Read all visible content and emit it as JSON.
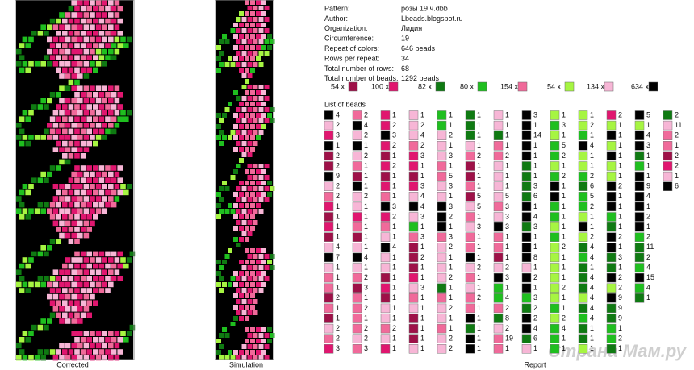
{
  "info": [
    [
      "Pattern:",
      "розы 19 ч.dbb"
    ],
    [
      "Author:",
      "Lbeads.blogspot.ru"
    ],
    [
      "Organization:",
      "Лидия"
    ],
    [
      "Circumference:",
      "19"
    ],
    [
      "Repeat of colors:",
      "646 beads"
    ],
    [
      "Rows per repeat:",
      "34"
    ],
    [
      "Total number of rows:",
      "68"
    ],
    [
      "Total number of beads:",
      "1292 beads"
    ]
  ],
  "colors": [
    "#9e1148",
    "#e0166f",
    "#0f7a12",
    "#1fbf1f",
    "#f06a9a",
    "#a6f542",
    "#f7b6d6",
    "#000000"
  ],
  "legend": [
    "54 x",
    "100 x",
    "82 x",
    "80 x",
    "154 x",
    "54 x",
    "134 x",
    "634 x"
  ],
  "bead_list": {
    "title": "List of beads",
    "columns": [
      [
        [
          7,
          4
        ],
        [
          6,
          2
        ],
        [
          1,
          3
        ],
        [
          7,
          1
        ],
        [
          0,
          2
        ],
        [
          0,
          2
        ],
        [
          7,
          9
        ],
        [
          6,
          2
        ],
        [
          4,
          2
        ],
        [
          1,
          1
        ],
        [
          0,
          1
        ],
        [
          1,
          1
        ],
        [
          0,
          1
        ],
        [
          6,
          4
        ],
        [
          7,
          7
        ],
        [
          6,
          1
        ],
        [
          4,
          1
        ],
        [
          4,
          1
        ],
        [
          0,
          2
        ],
        [
          4,
          1
        ],
        [
          0,
          1
        ],
        [
          6,
          2
        ],
        [
          4,
          2
        ],
        [
          1,
          3
        ]
      ],
      [
        [
          4,
          2
        ],
        [
          7,
          4
        ],
        [
          6,
          2
        ],
        [
          7,
          1
        ],
        [
          6,
          2
        ],
        [
          4,
          1
        ],
        [
          0,
          1
        ],
        [
          7,
          1
        ],
        [
          6,
          2
        ],
        [
          6,
          1
        ],
        [
          1,
          1
        ],
        [
          4,
          1
        ],
        [
          0,
          1
        ],
        [
          6,
          1
        ],
        [
          7,
          4
        ],
        [
          6,
          1
        ],
        [
          4,
          2
        ],
        [
          0,
          3
        ],
        [
          4,
          1
        ],
        [
          4,
          2
        ],
        [
          4,
          1
        ],
        [
          4,
          2
        ],
        [
          6,
          2
        ],
        [
          4,
          3
        ]
      ],
      [
        [
          1,
          1
        ],
        [
          1,
          2
        ],
        [
          7,
          3
        ],
        [
          1,
          2
        ],
        [
          0,
          1
        ],
        [
          1,
          2
        ],
        [
          0,
          1
        ],
        [
          1,
          1
        ],
        [
          4,
          1
        ],
        [
          7,
          3
        ],
        [
          1,
          2
        ],
        [
          4,
          1
        ],
        [
          6,
          1
        ],
        [
          7,
          4
        ],
        [
          6,
          1
        ],
        [
          6,
          1
        ],
        [
          0,
          1
        ],
        [
          1,
          1
        ],
        [
          0,
          1
        ],
        [
          6,
          1
        ],
        [
          6,
          1
        ],
        [
          4,
          2
        ],
        [
          6,
          1
        ],
        [
          1,
          1
        ]
      ],
      [
        [
          6,
          1
        ],
        [
          6,
          2
        ],
        [
          6,
          4
        ],
        [
          4,
          2
        ],
        [
          1,
          3
        ],
        [
          1,
          1
        ],
        [
          0,
          1
        ],
        [
          1,
          3
        ],
        [
          6,
          4
        ],
        [
          7,
          4
        ],
        [
          6,
          3
        ],
        [
          3,
          1
        ],
        [
          4,
          3
        ],
        [
          0,
          1
        ],
        [
          0,
          2
        ],
        [
          0,
          1
        ],
        [
          1,
          1
        ],
        [
          6,
          3
        ],
        [
          4,
          1
        ],
        [
          6,
          1
        ],
        [
          0,
          1
        ],
        [
          0,
          1
        ],
        [
          0,
          1
        ],
        [
          6,
          1
        ]
      ],
      [
        [
          3,
          1
        ],
        [
          3,
          1
        ],
        [
          6,
          2
        ],
        [
          6,
          1
        ],
        [
          6,
          3
        ],
        [
          4,
          1
        ],
        [
          4,
          5
        ],
        [
          6,
          3
        ],
        [
          6,
          1
        ],
        [
          7,
          3
        ],
        [
          7,
          2
        ],
        [
          7,
          1
        ],
        [
          4,
          3
        ],
        [
          6,
          2
        ],
        [
          6,
          1
        ],
        [
          6,
          1
        ],
        [
          6,
          2
        ],
        [
          2,
          1
        ],
        [
          4,
          1
        ],
        [
          6,
          2
        ],
        [
          6,
          1
        ],
        [
          4,
          1
        ],
        [
          6,
          2
        ],
        [
          6,
          2
        ]
      ],
      [
        [
          2,
          1
        ],
        [
          2,
          1
        ],
        [
          2,
          1
        ],
        [
          6,
          1
        ],
        [
          4,
          2
        ],
        [
          0,
          1
        ],
        [
          0,
          1
        ],
        [
          4,
          1
        ],
        [
          0,
          5
        ],
        [
          6,
          5
        ],
        [
          4,
          1
        ],
        [
          6,
          3
        ],
        [
          4,
          1
        ],
        [
          4,
          1
        ],
        [
          7,
          1
        ],
        [
          6,
          2
        ],
        [
          4,
          1
        ],
        [
          6,
          1
        ],
        [
          4,
          2
        ],
        [
          4,
          1
        ],
        [
          7,
          1
        ],
        [
          2,
          1
        ],
        [
          7,
          1
        ],
        [
          7,
          1
        ]
      ],
      [
        [
          6,
          1
        ],
        [
          6,
          1
        ],
        [
          2,
          1
        ],
        [
          4,
          1
        ],
        [
          4,
          2
        ],
        [
          6,
          1
        ],
        [
          6,
          1
        ],
        [
          6,
          1
        ],
        [
          6,
          5
        ],
        [
          4,
          3
        ],
        [
          6,
          3
        ],
        [
          7,
          3
        ],
        [
          4,
          1
        ],
        [
          4,
          1
        ],
        [
          0,
          1
        ],
        [
          6,
          2
        ],
        [
          7,
          3
        ],
        [
          3,
          1
        ],
        [
          3,
          4
        ],
        [
          4,
          2
        ],
        [
          2,
          8
        ],
        [
          6,
          2
        ],
        [
          4,
          19
        ],
        [
          4,
          1
        ]
      ],
      [
        [
          7,
          3
        ],
        [
          7,
          1
        ],
        [
          7,
          14
        ],
        [
          7,
          1
        ],
        [
          7,
          1
        ],
        [
          2,
          1
        ],
        [
          2,
          1
        ],
        [
          2,
          3
        ],
        [
          2,
          6
        ],
        [
          7,
          1
        ],
        [
          7,
          4
        ],
        [
          2,
          3
        ],
        [
          7,
          1
        ],
        [
          7,
          1
        ],
        [
          7,
          8
        ],
        [
          6,
          1
        ],
        [
          7,
          2
        ],
        [
          7,
          1
        ],
        [
          3,
          3
        ],
        [
          2,
          2
        ],
        [
          7,
          2
        ],
        [
          7,
          4
        ],
        [
          2,
          6
        ],
        [
          6,
          1
        ]
      ],
      [
        [
          5,
          1
        ],
        [
          3,
          3
        ],
        [
          5,
          1
        ],
        [
          3,
          5
        ],
        [
          3,
          2
        ],
        [
          5,
          1
        ],
        [
          3,
          2
        ],
        [
          7,
          1
        ],
        [
          7,
          1
        ],
        [
          3,
          1
        ],
        [
          3,
          1
        ],
        [
          5,
          1
        ],
        [
          3,
          1
        ],
        [
          5,
          2
        ],
        [
          5,
          1
        ],
        [
          5,
          1
        ],
        [
          5,
          1
        ],
        [
          5,
          2
        ],
        [
          5,
          1
        ],
        [
          3,
          1
        ],
        [
          5,
          2
        ],
        [
          3,
          4
        ],
        [
          3,
          1
        ],
        [
          3,
          1
        ]
      ],
      [
        [
          5,
          1
        ],
        [
          5,
          2
        ],
        [
          3,
          1
        ],
        [
          7,
          4
        ],
        [
          5,
          1
        ],
        [
          5,
          1
        ],
        [
          3,
          2
        ],
        [
          2,
          6
        ],
        [
          3,
          5
        ],
        [
          3,
          2
        ],
        [
          5,
          1
        ],
        [
          7,
          1
        ],
        [
          5,
          2
        ],
        [
          2,
          4
        ],
        [
          3,
          4
        ],
        [
          2,
          1
        ],
        [
          2,
          4
        ],
        [
          2,
          4
        ],
        [
          5,
          4
        ],
        [
          2,
          4
        ],
        [
          3,
          4
        ],
        [
          2,
          1
        ],
        [
          2,
          1
        ],
        [
          5,
          1
        ]
      ],
      [
        [
          1,
          2
        ],
        [
          5,
          1
        ],
        [
          7,
          1
        ],
        [
          5,
          1
        ],
        [
          7,
          1
        ],
        [
          5,
          1
        ],
        [
          5,
          1
        ],
        [
          7,
          2
        ],
        [
          7,
          1
        ],
        [
          7,
          1
        ],
        [
          3,
          1
        ],
        [
          2,
          1
        ],
        [
          7,
          2
        ],
        [
          7,
          1
        ],
        [
          2,
          3
        ],
        [
          2,
          1
        ],
        [
          7,
          2
        ],
        [
          5,
          2
        ],
        [
          7,
          9
        ],
        [
          2,
          9
        ],
        [
          2,
          9
        ],
        [
          3,
          1
        ],
        [
          3,
          2
        ],
        [
          2,
          1
        ]
      ],
      [
        [
          7,
          5
        ],
        [
          5,
          1
        ],
        [
          7,
          4
        ],
        [
          7,
          3
        ],
        [
          2,
          1
        ],
        [
          3,
          1
        ],
        [
          7,
          1
        ],
        [
          7,
          9
        ],
        [
          7,
          4
        ],
        [
          7,
          1
        ],
        [
          7,
          2
        ],
        [
          7,
          1
        ],
        [
          3,
          2
        ],
        [
          2,
          11
        ],
        [
          2,
          2
        ],
        [
          3,
          4
        ],
        [
          7,
          15
        ],
        [
          3,
          4
        ],
        [
          2,
          1
        ]
      ],
      [
        [
          2,
          2
        ],
        [
          6,
          11
        ],
        [
          4,
          2
        ],
        [
          4,
          1
        ],
        [
          0,
          2
        ],
        [
          1,
          2
        ],
        [
          6,
          1
        ],
        [
          7,
          6
        ]
      ]
    ]
  },
  "footer": {
    "corrected": "Corrected",
    "simulation": "Simulation",
    "report": "Report",
    "watermark": "Страна Мам.ру"
  }
}
